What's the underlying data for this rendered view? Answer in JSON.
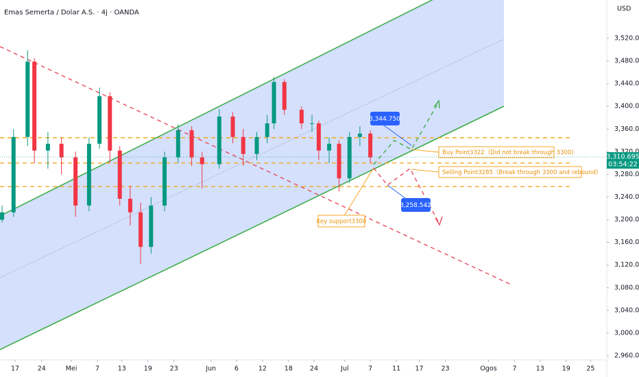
{
  "chart_data": {
    "type": "candlestick",
    "title": "Emas Semerta / Dolar A.S. · 4j · OANDA",
    "currency": "USD",
    "x": [
      -2.5,
      -0.3,
      2.4,
      3.7,
      6.3,
      8.9,
      11.6,
      14.2,
      16.2,
      18.2,
      20.1,
      22.1,
      24.1,
      26.1,
      28.7,
      31.3,
      33.9,
      35.9,
      39.2,
      41.8,
      43.8,
      46.4,
      48.4,
      49.7,
      51.7,
      55.0,
      57.0,
      58.3,
      60.3,
      62.2,
      64.2,
      66.2,
      68.2
    ],
    "open": [
      3200,
      3213,
      3346,
      3479,
      3322,
      3334,
      3310,
      3225,
      3334,
      3418,
      3322,
      3237,
      3213,
      3152,
      3225,
      3310,
      3358,
      3310,
      3298,
      3382,
      3346,
      3316,
      3346,
      3370,
      3443,
      3394,
      3370,
      3370,
      3322,
      3334,
      3273,
      3346,
      3352
    ],
    "high": [
      3225,
      3360,
      3499,
      3485,
      3355,
      3345,
      3320,
      3345,
      3433,
      3425,
      3330,
      3260,
      3230,
      3240,
      3320,
      3368,
      3365,
      3320,
      3395,
      3390,
      3360,
      3355,
      3385,
      3452,
      3448,
      3400,
      3385,
      3375,
      3345,
      3340,
      3355,
      3365,
      3358
    ],
    "low": [
      3195,
      3205,
      3330,
      3300,
      3290,
      3280,
      3205,
      3215,
      3325,
      3300,
      3225,
      3190,
      3122,
      3140,
      3215,
      3300,
      3295,
      3255,
      3290,
      3335,
      3295,
      3305,
      3335,
      3360,
      3385,
      3360,
      3355,
      3305,
      3300,
      3250,
      3265,
      3330,
      3300
    ],
    "close": [
      3213,
      3346,
      3479,
      3322,
      3334,
      3310,
      3225,
      3334,
      3418,
      3322,
      3237,
      3213,
      3152,
      3225,
      3310,
      3358,
      3310,
      3298,
      3382,
      3346,
      3316,
      3346,
      3370,
      3443,
      3394,
      3370,
      3370,
      3322,
      3334,
      3273,
      3346,
      3352,
      3310
    ],
    "up_color": "#089981",
    "down_color": "#f23645",
    "xlim": [
      -2.9,
      113.6
    ],
    "ylim": [
      2952.7,
      3587.7
    ],
    "xticks": [
      {
        "value": 0,
        "label": "17"
      },
      {
        "value": 5.1,
        "label": "24"
      },
      {
        "value": 10.8,
        "label": "Mei"
      },
      {
        "value": 15.8,
        "label": "7"
      },
      {
        "value": 20.5,
        "label": "13"
      },
      {
        "value": 25.5,
        "label": "19"
      },
      {
        "value": 30.5,
        "label": "23"
      },
      {
        "value": 37.6,
        "label": "Jun"
      },
      {
        "value": 42.5,
        "label": "6"
      },
      {
        "value": 47.5,
        "label": "12"
      },
      {
        "value": 52.5,
        "label": "18"
      },
      {
        "value": 57.4,
        "label": "24"
      },
      {
        "value": 63.3,
        "label": "Jul"
      },
      {
        "value": 68.2,
        "label": "7"
      },
      {
        "value": 73.2,
        "label": "11"
      },
      {
        "value": 77.6,
        "label": "17"
      },
      {
        "value": 82.6,
        "label": "23"
      },
      {
        "value": 90.9,
        "label": "Ogos"
      },
      {
        "value": 95.9,
        "label": "7"
      },
      {
        "value": 100.8,
        "label": "13"
      },
      {
        "value": 105.8,
        "label": "19"
      },
      {
        "value": 110.5,
        "label": "25"
      }
    ],
    "yticks": [
      {
        "value": 3520,
        "label": "3,520.000"
      },
      {
        "value": 3480,
        "label": "3,480.000"
      },
      {
        "value": 3440,
        "label": "3,440.000"
      },
      {
        "value": 3400,
        "label": "3,400.000"
      },
      {
        "value": 3360,
        "label": "3,360.000"
      },
      {
        "value": 3320,
        "label": "3,320.000"
      },
      {
        "value": 3280,
        "label": "3,280.000"
      },
      {
        "value": 3240,
        "label": "3,240.000"
      },
      {
        "value": 3200,
        "label": "3,200.000"
      },
      {
        "value": 3160,
        "label": "3,160.000"
      },
      {
        "value": 3120,
        "label": "3,120.000"
      },
      {
        "value": 3080,
        "label": "3,080.000"
      },
      {
        "value": 3040,
        "label": "3,040.000"
      },
      {
        "value": 3000,
        "label": "3,000.000"
      },
      {
        "value": 2960,
        "label": "2,960.000"
      }
    ],
    "last_price": {
      "value": 3310.695,
      "label": "3,310.695"
    },
    "countdown": "03:54:22",
    "resistance": {
      "value": 3344.75,
      "label": "3,344.750"
    },
    "support": 3300,
    "target": {
      "value": 3258.542,
      "label": "3,258.542"
    },
    "level_color": "#f5a623",
    "buy_note": "Buy Point3322（Did not break through 3300)",
    "sell_note": "Selling Point3285（Break through 3300 and rebound)",
    "support_note": "Key support3300"
  }
}
